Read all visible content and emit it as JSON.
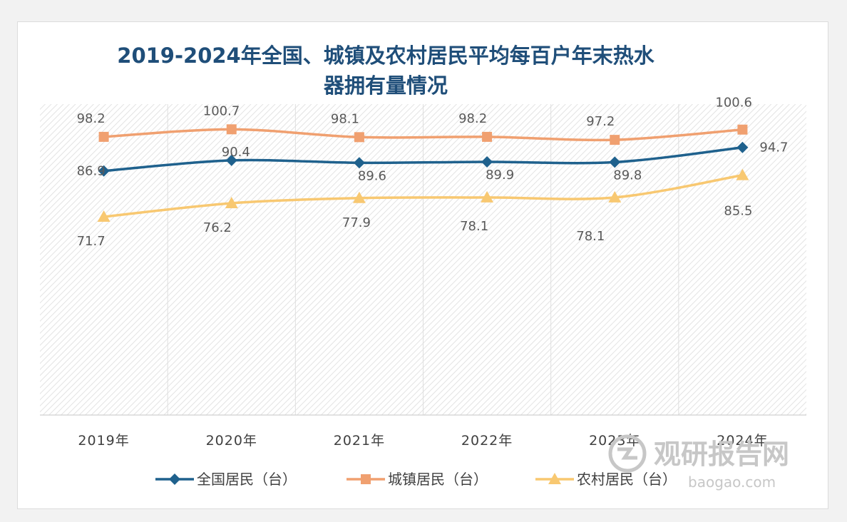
{
  "chart_data": {
    "type": "line",
    "title_lines": [
      "2019-2024年全国、城镇及农村居民平均每百户年末热水",
      "器拥有量情况"
    ],
    "categories": [
      "2019年",
      "2020年",
      "2021年",
      "2022年",
      "2023年",
      "2024年"
    ],
    "series": [
      {
        "name": "全国居民（台）",
        "values": [
          86.9,
          90.4,
          89.6,
          89.9,
          89.8,
          94.7
        ],
        "labels": [
          "86.9",
          "90.4",
          "89.6",
          "89.9",
          "89.8",
          "94.7"
        ],
        "color": "#1f618d",
        "marker": "diamond"
      },
      {
        "name": "城镇居民（台）",
        "values": [
          98.2,
          100.7,
          98.1,
          98.2,
          97.2,
          100.6
        ],
        "labels": [
          "98.2",
          "100.7",
          "98.1",
          "98.2",
          "97.2",
          "100.6"
        ],
        "color": "#f0a070",
        "marker": "square"
      },
      {
        "name": "农村居民（台）",
        "values": [
          71.7,
          76.2,
          77.9,
          78.1,
          78.1,
          85.5
        ],
        "labels": [
          "71.7",
          "76.2",
          "77.9",
          "78.1",
          "78.1",
          "85.5"
        ],
        "color": "#f8c871",
        "marker": "triangle"
      }
    ],
    "legend_position": "bottom",
    "grid": false,
    "background": "diagonal-hatch"
  },
  "watermark": {
    "text": "观研报告网",
    "url_text": "baogao.com"
  }
}
